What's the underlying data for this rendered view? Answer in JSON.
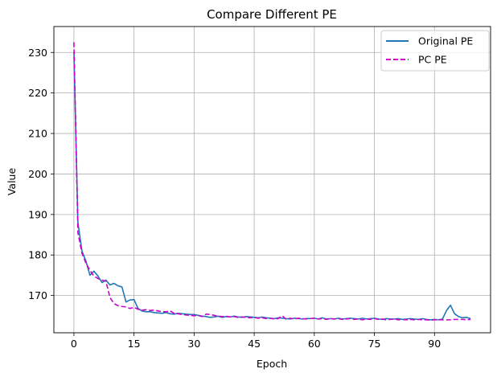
{
  "chart_data": {
    "type": "line",
    "title": "Compare Different PE",
    "xlabel": "Epoch",
    "ylabel": "Value",
    "xlim": [
      -5,
      104
    ],
    "ylim": [
      160.8,
      236.4
    ],
    "xticks": [
      0,
      15,
      30,
      45,
      60,
      75,
      90
    ],
    "yticks": [
      170,
      180,
      190,
      200,
      210,
      220,
      230
    ],
    "grid": true,
    "legend_position": "top-right",
    "series": [
      {
        "name": "Original PE",
        "color": "#1f77b4",
        "style": "solid",
        "x": [
          0,
          1,
          2,
          3,
          4,
          5,
          6,
          7,
          8,
          9,
          10,
          11,
          12,
          13,
          14,
          15,
          16,
          17,
          18,
          19,
          20,
          21,
          22,
          23,
          24,
          25,
          26,
          27,
          28,
          29,
          30,
          31,
          32,
          33,
          34,
          35,
          36,
          37,
          38,
          39,
          40,
          41,
          42,
          43,
          44,
          45,
          46,
          47,
          48,
          49,
          50,
          51,
          52,
          53,
          54,
          55,
          56,
          57,
          58,
          59,
          60,
          61,
          62,
          63,
          64,
          65,
          66,
          67,
          68,
          69,
          70,
          71,
          72,
          73,
          74,
          75,
          76,
          77,
          78,
          79,
          80,
          81,
          82,
          83,
          84,
          85,
          86,
          87,
          88,
          89,
          90,
          91,
          92,
          93,
          94,
          95,
          96,
          97,
          98,
          99
        ],
        "y": [
          230.0,
          188.0,
          181.0,
          178.5,
          175.0,
          176.0,
          174.8,
          173.2,
          173.8,
          172.6,
          173.0,
          172.4,
          172.1,
          168.4,
          168.9,
          169.0,
          166.8,
          166.2,
          166.0,
          166.0,
          165.8,
          165.7,
          165.6,
          165.8,
          165.5,
          165.4,
          165.6,
          165.5,
          165.4,
          165.3,
          165.3,
          165.1,
          164.9,
          164.8,
          164.6,
          164.7,
          164.9,
          164.6,
          164.8,
          164.7,
          164.9,
          164.7,
          164.6,
          164.8,
          164.7,
          164.6,
          164.5,
          164.7,
          164.5,
          164.4,
          164.3,
          164.5,
          164.4,
          164.3,
          164.2,
          164.4,
          164.3,
          164.2,
          164.3,
          164.3,
          164.4,
          164.2,
          164.5,
          164.2,
          164.3,
          164.2,
          164.4,
          164.2,
          164.3,
          164.4,
          164.3,
          164.2,
          164.4,
          164.2,
          164.3,
          164.4,
          164.2,
          164.1,
          164.3,
          164.2,
          164.2,
          164.3,
          164.1,
          164.2,
          164.3,
          164.2,
          164.1,
          164.3,
          164.1,
          164.0,
          164.1,
          164.0,
          164.2,
          166.3,
          167.6,
          165.5,
          164.8,
          164.5,
          164.6,
          164.3
        ]
      },
      {
        "name": "PC PE",
        "color": "#cc00cc",
        "style": "dashed",
        "x": [
          0,
          1,
          2,
          3,
          4,
          5,
          6,
          7,
          8,
          9,
          10,
          11,
          12,
          13,
          14,
          15,
          16,
          17,
          18,
          19,
          20,
          21,
          22,
          23,
          24,
          25,
          26,
          27,
          28,
          29,
          30,
          31,
          32,
          33,
          34,
          35,
          36,
          37,
          38,
          39,
          40,
          41,
          42,
          43,
          44,
          45,
          46,
          47,
          48,
          49,
          50,
          51,
          52,
          53,
          54,
          55,
          56,
          57,
          58,
          59,
          60,
          61,
          62,
          63,
          64,
          65,
          66,
          67,
          68,
          69,
          70,
          71,
          72,
          73,
          74,
          75,
          76,
          77,
          78,
          79,
          80,
          81,
          82,
          83,
          84,
          85,
          86,
          87,
          88,
          89,
          90,
          91,
          92,
          93,
          94,
          95,
          96,
          97,
          98,
          99
        ],
        "y": [
          232.5,
          185.5,
          180.5,
          178.0,
          176.2,
          174.8,
          174.2,
          173.8,
          173.5,
          169.5,
          168.0,
          167.5,
          167.3,
          167.2,
          166.8,
          167.1,
          166.6,
          166.4,
          166.5,
          166.3,
          166.4,
          166.2,
          166.0,
          166.0,
          166.2,
          165.6,
          165.5,
          165.3,
          165.2,
          165.1,
          165.0,
          165.1,
          164.8,
          165.4,
          165.3,
          165.1,
          164.9,
          164.8,
          164.9,
          164.7,
          164.8,
          164.6,
          164.7,
          164.6,
          164.5,
          164.6,
          164.4,
          164.5,
          164.3,
          164.4,
          164.2,
          164.3,
          165.0,
          164.1,
          164.4,
          164.2,
          164.4,
          164.3,
          164.2,
          164.3,
          164.4,
          164.2,
          164.3,
          164.1,
          164.3,
          164.2,
          164.3,
          164.1,
          164.2,
          164.3,
          164.1,
          164.2,
          164.0,
          164.2,
          164.1,
          164.3,
          164.1,
          164.2,
          164.0,
          164.1,
          164.2,
          164.0,
          164.1,
          164.0,
          164.1,
          164.0,
          164.1,
          164.0,
          164.0,
          163.9,
          164.0,
          164.0,
          164.0,
          164.0,
          164.0,
          164.1,
          164.1,
          164.1,
          164.0,
          164.1
        ]
      }
    ]
  }
}
